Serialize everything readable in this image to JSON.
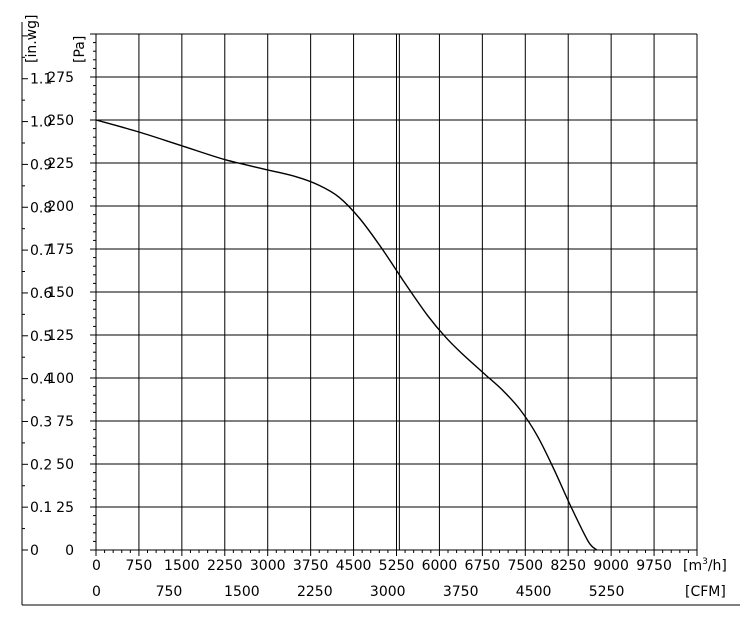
{
  "chart_data": {
    "type": "line",
    "x_units": "[m³/h]",
    "x_units_base": "[m",
    "x_units_sup": "3",
    "x_units_tail": "/h]",
    "x2_units": "[CFM]",
    "y_units": "[Pa]",
    "y2_units": "[in.wg]",
    "x_ticks": [
      "0",
      "750",
      "1500",
      "2250",
      "3000",
      "3750",
      "4500",
      "5250",
      "6000",
      "6750",
      "7500",
      "8250",
      "9000",
      "9750"
    ],
    "x2_ticks": [
      "0",
      "750",
      "1500",
      "2250",
      "3000",
      "3750",
      "4500",
      "5250"
    ],
    "y_ticks": [
      "0",
      "25",
      "50",
      "75",
      "100",
      "125",
      "150",
      "175",
      "200",
      "225",
      "250",
      "275"
    ],
    "y2_ticks": [
      "0",
      "0.1",
      "0.2",
      "0.3",
      "0.4",
      "0.5",
      "0.6",
      "0.7",
      "0.8",
      "0.9",
      "1.0",
      "1.1"
    ],
    "xlim": [
      0,
      10500
    ],
    "ylim": [
      0,
      300
    ],
    "x2_to_x_factor": 1.699,
    "grid": true,
    "series": [
      {
        "x": [
          0,
          750,
          1500,
          2250,
          3000,
          3500,
          3900,
          4250,
          4600,
          5000,
          5400,
          5800,
          6100,
          6400,
          6800,
          7100,
          7400,
          7700,
          8000,
          8300,
          8600,
          8750
        ],
        "y": [
          250,
          243,
          235,
          227,
          221,
          217,
          212,
          205,
          193,
          175,
          155,
          136,
          124,
          114,
          102,
          93,
          82,
          67,
          47,
          25,
          5,
          0
        ]
      }
    ],
    "vertical_line": {
      "x": 5300
    }
  }
}
